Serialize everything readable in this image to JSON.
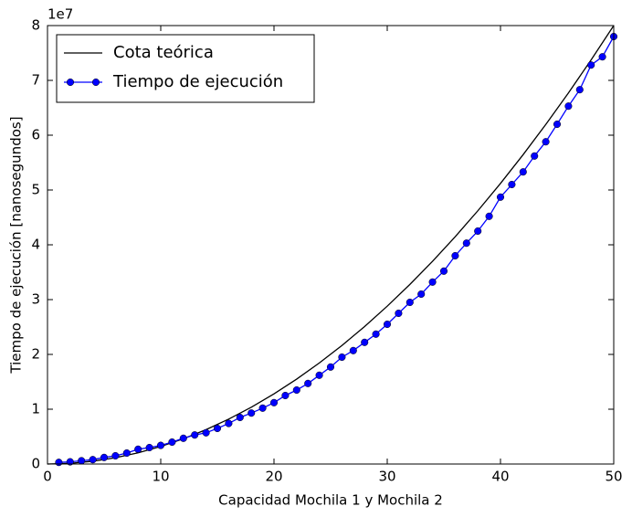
{
  "chart_data": {
    "type": "line",
    "x_label": "Capacidad Mochila 1 y Mochila 2",
    "y_label": "Tiempo de ejecución [nanosegundos]",
    "y_offset_label": "1e7",
    "xlim": [
      0,
      50
    ],
    "ylim": [
      0,
      8
    ],
    "xticks": [
      0,
      10,
      20,
      30,
      40,
      50
    ],
    "yticks": [
      0,
      1,
      2,
      3,
      4,
      5,
      6,
      7,
      8
    ],
    "legend": "upper left",
    "series": [
      {
        "name": "Cota teórica",
        "color": "#000000",
        "marker": false,
        "x": [
          0,
          2,
          4,
          6,
          8,
          10,
          12,
          14,
          16,
          18,
          20,
          22,
          24,
          26,
          28,
          30,
          32,
          34,
          36,
          38,
          40,
          42,
          44,
          46,
          48,
          50
        ],
        "values": [
          0,
          0.0128,
          0.0512,
          0.1152,
          0.2048,
          0.32,
          0.4608,
          0.6272,
          0.8192,
          1.0368,
          1.28,
          1.5488,
          1.8432,
          2.1632,
          2.5088,
          2.88,
          3.2768,
          3.6992,
          4.1472,
          4.6208,
          5.12,
          5.6448,
          6.1952,
          6.7712,
          7.3728,
          8
        ]
      },
      {
        "name": "Tiempo de ejecución",
        "color": "#0000ff",
        "marker": true,
        "x": [
          1,
          2,
          3,
          4,
          5,
          6,
          7,
          8,
          9,
          10,
          11,
          12,
          13,
          14,
          15,
          16,
          17,
          18,
          19,
          20,
          21,
          22,
          23,
          24,
          25,
          26,
          27,
          28,
          29,
          30,
          31,
          32,
          33,
          34,
          35,
          36,
          37,
          38,
          39,
          40,
          41,
          42,
          43,
          44,
          45,
          46,
          47,
          48,
          49,
          50
        ],
        "values": [
          0.03,
          0.04,
          0.06,
          0.08,
          0.12,
          0.15,
          0.2,
          0.27,
          0.3,
          0.34,
          0.4,
          0.47,
          0.53,
          0.57,
          0.65,
          0.74,
          0.85,
          0.93,
          1.02,
          1.12,
          1.25,
          1.35,
          1.47,
          1.62,
          1.77,
          1.95,
          2.07,
          2.22,
          2.37,
          2.55,
          2.75,
          2.95,
          3.1,
          3.32,
          3.52,
          3.8,
          4.03,
          4.25,
          4.52,
          4.87,
          5.1,
          5.33,
          5.62,
          5.88,
          6.2,
          6.53,
          6.83,
          7.28,
          7.43,
          7.8
        ]
      }
    ]
  }
}
